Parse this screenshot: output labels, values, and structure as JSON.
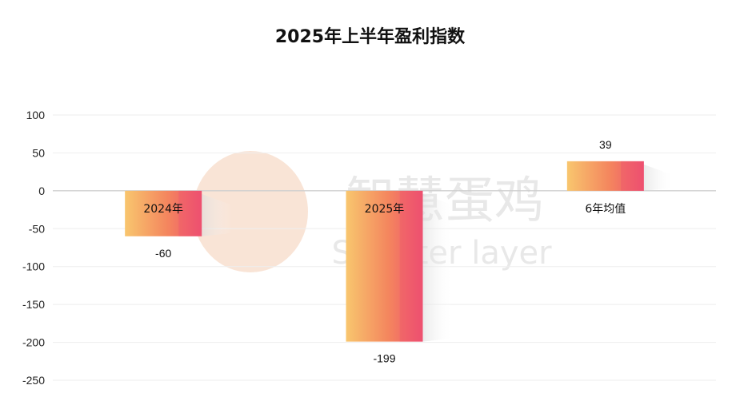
{
  "chart_data": {
    "type": "bar",
    "title": "2025年上半年盈利指数",
    "categories": [
      "2024年",
      "2025年",
      "6年均值"
    ],
    "values": [
      -60,
      -199,
      39
    ],
    "ylim": [
      -250,
      100
    ],
    "yticks": [
      100,
      50,
      0,
      -50,
      -100,
      -150,
      -200,
      -250
    ],
    "grid": true,
    "legend": "none",
    "bar_gradient": [
      "#F8C66E",
      "#F4865E",
      "#EE5070"
    ],
    "watermark": {
      "line1": "智慧蛋鸡",
      "line2": "Smarter layer",
      "color": "#F7D8C4"
    }
  }
}
